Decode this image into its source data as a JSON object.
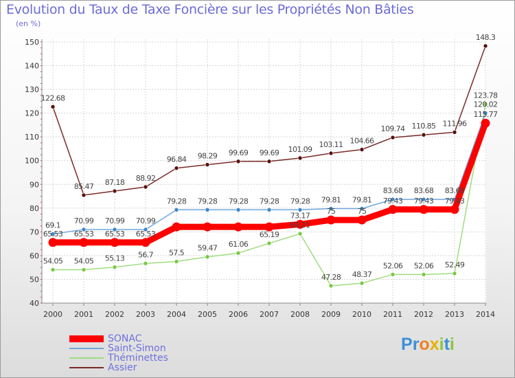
{
  "title": "Evolution du Taux de Taxe Foncière sur les Propriétés Non Bâties",
  "subtitle": "(en %)",
  "logo": {
    "letters": [
      {
        "ch": "P",
        "color": "#3c8fd8"
      },
      {
        "ch": "r",
        "color": "#3c8fd8"
      },
      {
        "ch": "o",
        "color": "#f08020"
      },
      {
        "ch": "x",
        "color": "#e8b000"
      },
      {
        "ch": "i",
        "color": "#8cc63e"
      },
      {
        "ch": "t",
        "color": "#3c8fd8"
      },
      {
        "ch": "i",
        "color": "#8cc63e"
      }
    ]
  },
  "chart_data": {
    "type": "line",
    "title": "Evolution du Taux de Taxe Foncière sur les Propriétés Non Bâties",
    "ylabel": "(en %)",
    "ylim": [
      40,
      150
    ],
    "yticks": [
      "40",
      "50",
      "60",
      "70",
      "80",
      "90",
      "100",
      "110",
      "120",
      "130",
      "140",
      "150"
    ],
    "x": [
      "2000",
      "2001",
      "2002",
      "2003",
      "2004",
      "2005",
      "2006",
      "2007",
      "2008",
      "2009",
      "2010",
      "2011",
      "2012",
      "2013",
      "2014"
    ],
    "grid": true,
    "legend": "bottom-left",
    "series": [
      {
        "name": "SONAC",
        "color": "#ff0000",
        "marker": "#ff0000",
        "values": [
          65.53,
          65.53,
          65.53,
          65.53,
          72.09,
          72.09,
          72.09,
          72.09,
          73.17,
          75,
          75,
          79.43,
          79.43,
          79.43,
          115.77
        ],
        "labels": [
          "65.53",
          "65.53",
          "65.53",
          "65.53",
          "",
          "",
          "",
          "",
          "73.17",
          "75",
          "75",
          "79.43",
          "79.43",
          "79.43",
          "115.77"
        ]
      },
      {
        "name": "Saint-Simon",
        "color": "#6fa8dc",
        "marker": "#3d85c6",
        "values": [
          69.1,
          70.99,
          70.99,
          70.99,
          79.28,
          79.28,
          79.28,
          79.28,
          79.28,
          79.81,
          79.81,
          83.68,
          83.68,
          83.68,
          120.02
        ],
        "labels": [
          "69.1",
          "70.99",
          "70.99",
          "70.99",
          "79.28",
          "79.28",
          "79.28",
          "79.28",
          "79.28",
          "79.81",
          "79.81",
          "83.68",
          "83.68",
          "83.68",
          "120.02"
        ]
      },
      {
        "name": "Théminettes",
        "color": "#9fdc7f",
        "marker": "#7ac943",
        "values": [
          54.05,
          54.05,
          55.13,
          56.7,
          57.5,
          59.47,
          61.06,
          65.19,
          69.21,
          47.28,
          48.37,
          52.06,
          52.06,
          52.49,
          123.78
        ],
        "labels": [
          "54.05",
          "54.05",
          "55.13",
          "56.7",
          "57.5",
          "59.47",
          "61.06",
          "65.19",
          "69.21",
          "47.28",
          "48.37",
          "52.06",
          "52.06",
          "52.49",
          "123.78"
        ]
      },
      {
        "name": "Assier",
        "color": "#7a2a2a",
        "marker": "#5a1010",
        "values": [
          122.68,
          85.47,
          87.18,
          88.92,
          96.84,
          98.29,
          99.69,
          99.69,
          101.09,
          103.11,
          104.66,
          109.74,
          110.85,
          111.96,
          148.3
        ],
        "labels": [
          "122.68",
          "85.47",
          "87.18",
          "88.92",
          "96.84",
          "98.29",
          "99.69",
          "99.69",
          "101.09",
          "103.11",
          "104.66",
          "109.74",
          "110.85",
          "111.96",
          "148.3"
        ]
      }
    ]
  }
}
